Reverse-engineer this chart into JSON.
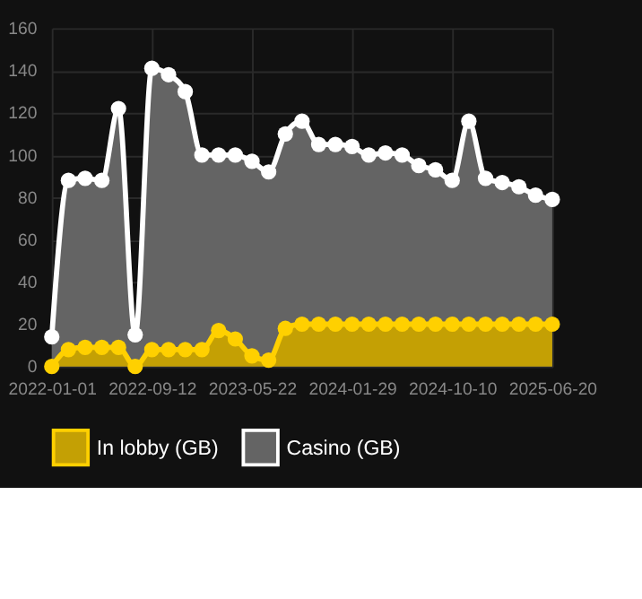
{
  "chart_data": {
    "type": "area",
    "categories": [
      "2022-01-01",
      null,
      null,
      null,
      null,
      null,
      "2022-09-12",
      null,
      null,
      null,
      null,
      null,
      "2023-05-22",
      null,
      null,
      null,
      null,
      null,
      "2024-01-29",
      null,
      null,
      null,
      null,
      null,
      "2024-10-10",
      null,
      null,
      null,
      null,
      null,
      "2025-06-20"
    ],
    "series": [
      {
        "name": "In lobby (GB)",
        "color": "#ffd000",
        "values": [
          0,
          8,
          9,
          9,
          9,
          0,
          8,
          8,
          8,
          8,
          17,
          13,
          5,
          3,
          18,
          20,
          20,
          20,
          20,
          20,
          20,
          20,
          20,
          20,
          20,
          20,
          20,
          20,
          20,
          20,
          20
        ]
      },
      {
        "name": "Casino (GB)",
        "color": "#ffffff",
        "values": [
          14,
          88,
          89,
          88,
          122,
          15,
          141,
          138,
          130,
          100,
          100,
          100,
          97,
          92,
          110,
          116,
          105,
          105,
          104,
          100,
          101,
          100,
          95,
          93,
          88,
          116,
          89,
          87,
          85,
          81,
          79
        ]
      }
    ],
    "ylim": [
      0,
      160
    ],
    "yticks": [
      0,
      20,
      40,
      60,
      80,
      100,
      120,
      140,
      160
    ],
    "grid": true,
    "legend": "bottom",
    "marker": "circle",
    "line_style": "solid"
  }
}
